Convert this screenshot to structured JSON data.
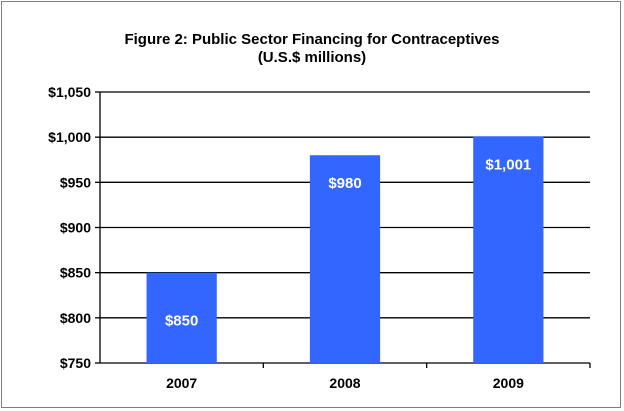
{
  "chart_data": {
    "type": "bar",
    "title_lines": [
      "Figure 2: Public Sector Financing for Contraceptives",
      "(U.S.$ millions)"
    ],
    "xlabel": "",
    "ylabel": "",
    "categories": [
      "2007",
      "2008",
      "2009"
    ],
    "values": [
      850,
      980,
      1001
    ],
    "data_labels": [
      "$850",
      "$980",
      "$1,001"
    ],
    "ylim": [
      750,
      1050
    ],
    "yticks": [
      750,
      800,
      850,
      900,
      950,
      1000,
      1050
    ],
    "ytick_labels": [
      "$750",
      "$800",
      "$850",
      "$900",
      "$950",
      "$1,000",
      "$1,050"
    ],
    "grid": "horizontal",
    "legend": "none",
    "bar_color": "#3366ff",
    "data_label_color": "#ffffff"
  }
}
